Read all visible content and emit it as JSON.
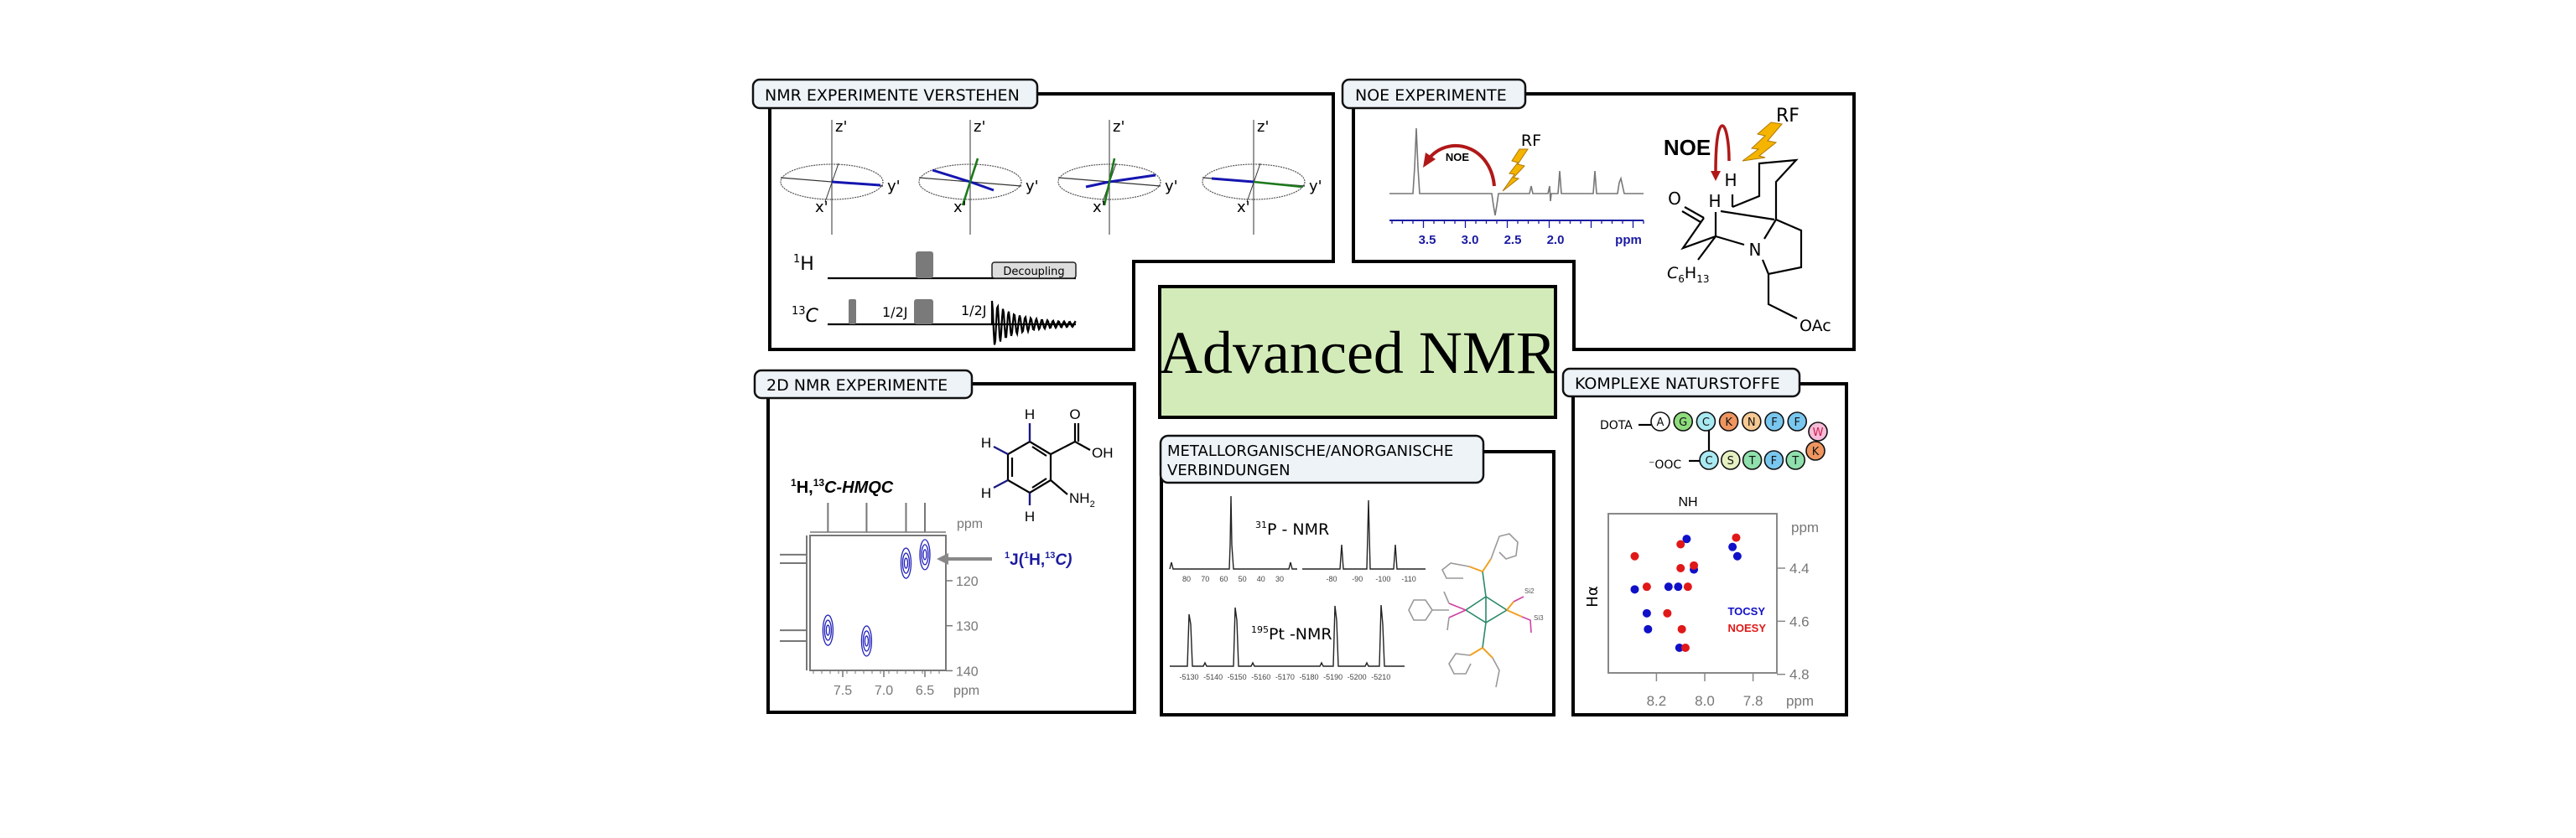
{
  "center": {
    "title": "Advanced NMR",
    "fill": "#d3ebb9"
  },
  "panel_vectors": {
    "title": "NMR EXPERIMENTE VERSTEHEN",
    "axis_z": "z'",
    "axis_x": "x'",
    "axis_y": "y'",
    "channel_h": "1H",
    "channel_h_sup": "1",
    "channel_h_el": "H",
    "channel_c_sup": "13",
    "channel_c_el": "C",
    "delay1": "1/2J",
    "delay2": "1/2J",
    "decoupling": "Decoupling"
  },
  "panel_noe": {
    "title": "NOE EXPERIMENTE",
    "noe_small": "NOE",
    "rf_small": "RF",
    "noe_big": "NOE",
    "rf_big": "RF",
    "ticks": [
      "3.5",
      "3.0",
      "2.5",
      "2.0"
    ],
    "unit": "ppm",
    "atoms": {
      "o": "O",
      "h1": "H",
      "h2": "H",
      "n": "N",
      "c6": "C",
      "c6_sub": "6",
      "h13": "H",
      "h13_sub": "13",
      "oac": "OAc"
    },
    "arrow_color": "#b01818",
    "bolt_color": "#f5b400",
    "axis_color": "#1a1aa0"
  },
  "panel_2d": {
    "title": "2D NMR EXPERIMENTE",
    "experiment_sup1": "1",
    "experiment_h": "H,",
    "experiment_sup2": "13",
    "experiment_rest": "C-HMQC",
    "coupling_label": "1J(1H,13C)",
    "coupling_parts": {
      "s1": "1",
      "j": "J(",
      "s2": "1",
      "h": "H,",
      "s3": "13",
      "c": "C)"
    },
    "atoms": {
      "o": "O",
      "oh": "OH",
      "nh2": "NH",
      "nh2_sub": "2",
      "h": "H"
    },
    "contour_color": "#2222bb"
  },
  "panel_metal": {
    "title_line1": "METALLORGANISCHE/ANORGANISCHE",
    "title_line2": "VERBINDUNGEN",
    "p31_sup": "31",
    "p31_label": "P - NMR",
    "pt195_sup": "195",
    "pt195_label": "Pt -NMR",
    "p31_ticks_left": [
      "80",
      "70",
      "60",
      "50",
      "40",
      "30"
    ],
    "p31_ticks_right": [
      "-80",
      "-90",
      "-100",
      "-110"
    ],
    "pt_ticks": [
      "-5130",
      "-5140",
      "-5150",
      "-5160",
      "-5170",
      "-5180",
      "-5190",
      "-5200",
      "-5210"
    ],
    "atom_labels": [
      "Si2",
      "Si3"
    ]
  },
  "panel_natural": {
    "title": "KOMPLEXE NATURSTOFFE",
    "n_term": "DOTA",
    "c_term": "⁻OOC",
    "top_row": [
      {
        "aa": "A",
        "color": "#ffffff"
      },
      {
        "aa": "G",
        "color": "#8fdc7e"
      },
      {
        "aa": "C",
        "color": "#a9e9f2"
      },
      {
        "aa": "K",
        "color": "#ee9560"
      },
      {
        "aa": "N",
        "color": "#f7c992"
      },
      {
        "aa": "F",
        "color": "#79c7ef"
      },
      {
        "aa": "F",
        "color": "#79c7ef"
      }
    ],
    "turn": [
      {
        "aa": "W",
        "color": "#f6bcd9",
        "text_color": "#d0204a"
      },
      {
        "aa": "K",
        "color": "#ee9560"
      }
    ],
    "bottom_row": [
      {
        "aa": "C",
        "color": "#a9e9f2"
      },
      {
        "aa": "S",
        "color": "#e6f0c2"
      },
      {
        "aa": "T",
        "color": "#8fe0ac"
      },
      {
        "aa": "F",
        "color": "#79c7ef"
      },
      {
        "aa": "T",
        "color": "#8fe0ac"
      }
    ]
  },
  "chart_data": [
    {
      "type": "scatter",
      "title": "1H,13C-HMQC",
      "xlabel": "ppm",
      "ylabel": "ppm",
      "xlim": [
        7.9,
        6.25
      ],
      "ylim": [
        110,
        140
      ],
      "xticks": [
        "7.5",
        "7.0",
        "6.5"
      ],
      "yticks": [
        "120",
        "130",
        "140"
      ],
      "x_reversed": true,
      "points": [
        {
          "h": 7.68,
          "c": 131.0
        },
        {
          "h": 7.21,
          "c": 133.4
        },
        {
          "h": 6.73,
          "c": 116.1
        },
        {
          "h": 6.5,
          "c": 114.2
        }
      ]
    },
    {
      "type": "scatter",
      "xlabel": "NH",
      "ylabel": "Hα",
      "x_unit": "ppm",
      "y_unit": "ppm",
      "xlim": [
        8.4,
        7.7
      ],
      "ylim": [
        4.19,
        4.8
      ],
      "xticks": [
        "8.2",
        "8.0",
        "7.8"
      ],
      "yticks": [
        "4.4",
        "4.6",
        "4.8"
      ],
      "legend": "right",
      "series": [
        {
          "name": "TOCSY",
          "color": "#1010c8",
          "points": [
            [
              8.075,
              4.29
            ],
            [
              8.045,
              4.405
            ],
            [
              8.29,
              4.48
            ],
            [
              8.15,
              4.47
            ],
            [
              8.11,
              4.47
            ],
            [
              8.24,
              4.57
            ],
            [
              8.235,
              4.63
            ],
            [
              8.105,
              4.7
            ],
            [
              7.885,
              4.32
            ],
            [
              7.865,
              4.355
            ]
          ]
        },
        {
          "name": "NOESY",
          "color": "#e01818",
          "points": [
            [
              8.1,
              4.31
            ],
            [
              8.29,
              4.355
            ],
            [
              8.1,
              4.4
            ],
            [
              8.045,
              4.39
            ],
            [
              8.24,
              4.47
            ],
            [
              8.07,
              4.47
            ],
            [
              8.155,
              4.57
            ],
            [
              8.095,
              4.63
            ],
            [
              8.08,
              4.7
            ],
            [
              7.87,
              4.285
            ]
          ]
        }
      ]
    }
  ]
}
